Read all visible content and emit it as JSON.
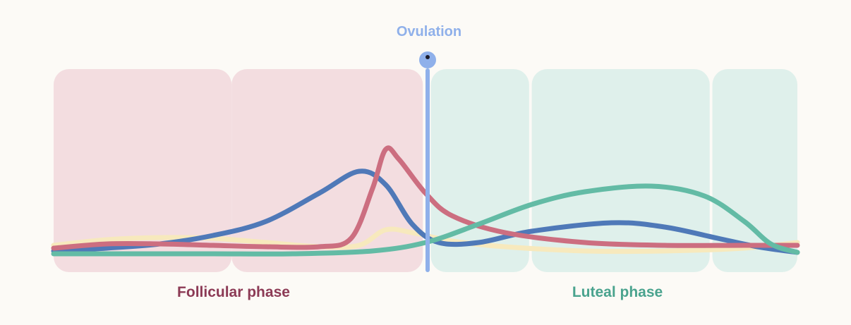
{
  "chart_data": {
    "type": "line",
    "title": "",
    "xlabel": "",
    "ylabel": "",
    "x_range": [
      0,
      28
    ],
    "y_range": [
      0,
      100
    ],
    "grid": false,
    "legend": "none",
    "ovulation": {
      "label": "Ovulation",
      "day": 14,
      "color": "#8fb0ea"
    },
    "phases": [
      {
        "name": "Follicular phase",
        "start": 0,
        "end": 14,
        "color": "#f3dde0",
        "label_color": "#8c3a55"
      },
      {
        "name": "Luteal phase",
        "start": 14,
        "end": 28,
        "color": "#dff0eb",
        "label_color": "#4aa38e"
      }
    ],
    "panels": [
      [
        0,
        6.7
      ],
      [
        6.7,
        13.9
      ],
      [
        14.2,
        17.9
      ],
      [
        18.0,
        24.7
      ],
      [
        24.8,
        28
      ]
    ],
    "series": [
      {
        "color": "#f7e9bd",
        "points": [
          [
            0,
            5
          ],
          [
            2,
            9
          ],
          [
            4,
            10.5
          ],
          [
            6,
            10
          ],
          [
            8,
            7
          ],
          [
            10,
            4
          ],
          [
            11.5,
            5
          ],
          [
            12.5,
            16
          ],
          [
            13.5,
            14
          ],
          [
            15,
            8
          ],
          [
            17,
            4
          ],
          [
            20,
            1
          ],
          [
            23,
            1
          ],
          [
            26,
            3
          ],
          [
            28,
            7
          ]
        ]
      },
      {
        "color": "#4f79b8",
        "points": [
          [
            0,
            1
          ],
          [
            2,
            3
          ],
          [
            4,
            6
          ],
          [
            6,
            12
          ],
          [
            8,
            22
          ],
          [
            10,
            42
          ],
          [
            11.5,
            57.5
          ],
          [
            12.5,
            48
          ],
          [
            13.5,
            20
          ],
          [
            14.5,
            7
          ],
          [
            16,
            7
          ],
          [
            18,
            15
          ],
          [
            21,
            21
          ],
          [
            23,
            18
          ],
          [
            25,
            10
          ],
          [
            26.5,
            4
          ],
          [
            28,
            0
          ]
        ]
      },
      {
        "color": "#cc6e80",
        "points": [
          [
            0,
            3
          ],
          [
            2,
            6
          ],
          [
            4,
            6
          ],
          [
            6,
            5
          ],
          [
            8,
            4
          ],
          [
            10,
            4
          ],
          [
            11.2,
            10
          ],
          [
            12,
            45
          ],
          [
            12.5,
            73
          ],
          [
            13,
            66
          ],
          [
            14,
            42
          ],
          [
            15,
            26
          ],
          [
            17,
            14
          ],
          [
            20,
            7
          ],
          [
            23,
            5
          ],
          [
            26,
            5
          ],
          [
            28,
            5
          ]
        ]
      },
      {
        "color": "#63bba5",
        "points": [
          [
            0,
            -1
          ],
          [
            3,
            -1
          ],
          [
            6,
            -1
          ],
          [
            9,
            -1
          ],
          [
            12,
            1
          ],
          [
            14,
            7
          ],
          [
            16,
            20
          ],
          [
            18,
            34
          ],
          [
            20,
            43
          ],
          [
            22.5,
            47
          ],
          [
            24.5,
            40
          ],
          [
            26,
            22
          ],
          [
            27,
            6
          ],
          [
            28,
            0
          ]
        ]
      }
    ]
  }
}
